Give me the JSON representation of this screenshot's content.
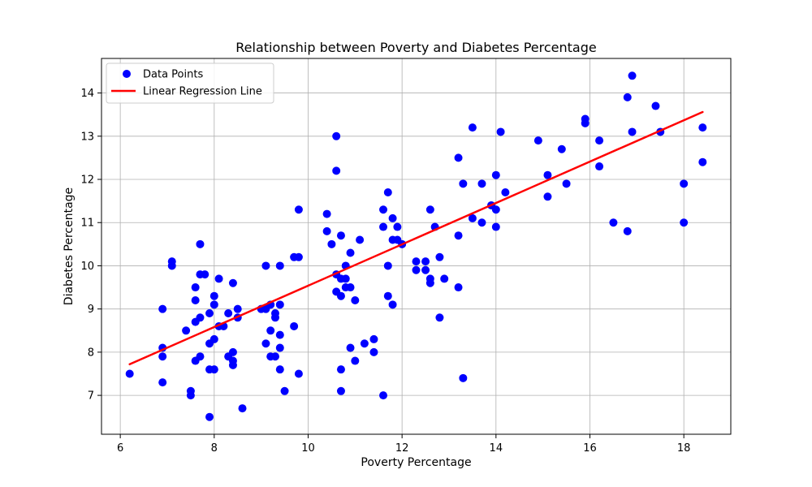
{
  "chart_data": {
    "type": "scatter",
    "title": "Relationship between Poverty and Diabetes Percentage",
    "xlabel": "Poverty Percentage",
    "ylabel": "Diabetes Percentage",
    "xlim": [
      5.6,
      19.0
    ],
    "ylim": [
      6.1,
      14.8
    ],
    "xticks": [
      6,
      8,
      10,
      12,
      14,
      16,
      18
    ],
    "yticks": [
      7,
      8,
      9,
      10,
      11,
      12,
      13,
      14
    ],
    "grid": true,
    "legend_position": "top-left",
    "series": [
      {
        "name": "Data Points",
        "kind": "scatter",
        "color": "#0000ff",
        "points": [
          [
            6.2,
            7.5
          ],
          [
            6.9,
            9.0
          ],
          [
            6.9,
            8.1
          ],
          [
            6.9,
            7.9
          ],
          [
            6.9,
            7.3
          ],
          [
            7.1,
            10.1
          ],
          [
            7.1,
            10.0
          ],
          [
            7.4,
            8.5
          ],
          [
            7.5,
            7.1
          ],
          [
            7.5,
            7.0
          ],
          [
            7.6,
            9.5
          ],
          [
            7.6,
            9.2
          ],
          [
            7.6,
            8.7
          ],
          [
            7.6,
            7.8
          ],
          [
            7.7,
            10.5
          ],
          [
            7.7,
            9.8
          ],
          [
            7.7,
            8.8
          ],
          [
            7.7,
            7.9
          ],
          [
            7.8,
            9.8
          ],
          [
            7.9,
            8.9
          ],
          [
            7.9,
            8.2
          ],
          [
            7.9,
            7.6
          ],
          [
            7.9,
            6.5
          ],
          [
            8.0,
            9.3
          ],
          [
            8.0,
            9.1
          ],
          [
            8.0,
            8.3
          ],
          [
            8.0,
            7.6
          ],
          [
            8.1,
            9.7
          ],
          [
            8.1,
            8.6
          ],
          [
            8.2,
            8.6
          ],
          [
            8.3,
            8.9
          ],
          [
            8.3,
            7.9
          ],
          [
            8.4,
            9.6
          ],
          [
            8.4,
            8.0
          ],
          [
            8.4,
            7.8
          ],
          [
            8.4,
            7.7
          ],
          [
            8.5,
            9.0
          ],
          [
            8.5,
            8.8
          ],
          [
            8.6,
            6.7
          ],
          [
            9.0,
            9.0
          ],
          [
            9.1,
            10.0
          ],
          [
            9.1,
            9.0
          ],
          [
            9.1,
            8.2
          ],
          [
            9.2,
            9.1
          ],
          [
            9.2,
            8.5
          ],
          [
            9.2,
            7.9
          ],
          [
            9.3,
            8.9
          ],
          [
            9.3,
            8.8
          ],
          [
            9.3,
            7.9
          ],
          [
            9.4,
            10.0
          ],
          [
            9.4,
            9.1
          ],
          [
            9.4,
            8.4
          ],
          [
            9.4,
            8.1
          ],
          [
            9.4,
            7.6
          ],
          [
            9.5,
            7.1
          ],
          [
            9.7,
            10.2
          ],
          [
            9.7,
            8.6
          ],
          [
            9.8,
            11.3
          ],
          [
            9.8,
            10.2
          ],
          [
            9.8,
            7.5
          ],
          [
            10.4,
            11.2
          ],
          [
            10.4,
            10.8
          ],
          [
            10.5,
            10.5
          ],
          [
            10.6,
            13.0
          ],
          [
            10.6,
            12.2
          ],
          [
            10.6,
            9.8
          ],
          [
            10.6,
            9.4
          ],
          [
            10.7,
            10.7
          ],
          [
            10.7,
            9.7
          ],
          [
            10.7,
            9.3
          ],
          [
            10.7,
            7.6
          ],
          [
            10.7,
            7.1
          ],
          [
            10.8,
            10.0
          ],
          [
            10.8,
            9.7
          ],
          [
            10.8,
            9.5
          ],
          [
            10.9,
            10.3
          ],
          [
            10.9,
            9.5
          ],
          [
            10.9,
            8.1
          ],
          [
            11.0,
            9.2
          ],
          [
            11.0,
            7.8
          ],
          [
            11.1,
            10.6
          ],
          [
            11.2,
            8.2
          ],
          [
            11.4,
            8.3
          ],
          [
            11.4,
            8.0
          ],
          [
            11.6,
            11.3
          ],
          [
            11.6,
            10.9
          ],
          [
            11.6,
            7.0
          ],
          [
            11.7,
            11.7
          ],
          [
            11.7,
            10.0
          ],
          [
            11.7,
            9.3
          ],
          [
            11.8,
            11.1
          ],
          [
            11.8,
            10.6
          ],
          [
            11.8,
            9.1
          ],
          [
            11.9,
            10.9
          ],
          [
            11.9,
            10.6
          ],
          [
            12.0,
            10.5
          ],
          [
            12.3,
            10.1
          ],
          [
            12.3,
            9.9
          ],
          [
            12.5,
            10.1
          ],
          [
            12.5,
            9.9
          ],
          [
            12.6,
            11.3
          ],
          [
            12.6,
            9.7
          ],
          [
            12.6,
            9.6
          ],
          [
            12.7,
            10.9
          ],
          [
            12.8,
            10.2
          ],
          [
            12.8,
            8.8
          ],
          [
            12.9,
            9.7
          ],
          [
            13.2,
            12.5
          ],
          [
            13.2,
            10.7
          ],
          [
            13.2,
            9.5
          ],
          [
            13.3,
            11.9
          ],
          [
            13.3,
            7.4
          ],
          [
            13.5,
            13.2
          ],
          [
            13.5,
            11.1
          ],
          [
            13.7,
            11.9
          ],
          [
            13.7,
            11.0
          ],
          [
            13.9,
            11.4
          ],
          [
            14.0,
            12.1
          ],
          [
            14.0,
            11.3
          ],
          [
            14.0,
            10.9
          ],
          [
            14.1,
            13.1
          ],
          [
            14.2,
            11.7
          ],
          [
            14.9,
            12.9
          ],
          [
            15.1,
            12.1
          ],
          [
            15.1,
            11.6
          ],
          [
            15.4,
            12.7
          ],
          [
            15.5,
            11.9
          ],
          [
            15.9,
            13.4
          ],
          [
            15.9,
            13.3
          ],
          [
            16.2,
            12.9
          ],
          [
            16.2,
            12.3
          ],
          [
            16.5,
            11.0
          ],
          [
            16.8,
            13.9
          ],
          [
            16.8,
            10.8
          ],
          [
            16.9,
            14.4
          ],
          [
            16.9,
            13.1
          ],
          [
            17.4,
            13.7
          ],
          [
            17.5,
            13.1
          ],
          [
            18.0,
            11.9
          ],
          [
            18.0,
            11.0
          ],
          [
            18.4,
            13.2
          ],
          [
            18.4,
            12.4
          ]
        ]
      },
      {
        "name": "Linear Regression Line",
        "kind": "line",
        "color": "#ff0000",
        "x": [
          6.2,
          18.4
        ],
        "y": [
          7.72,
          13.56
        ]
      }
    ]
  }
}
